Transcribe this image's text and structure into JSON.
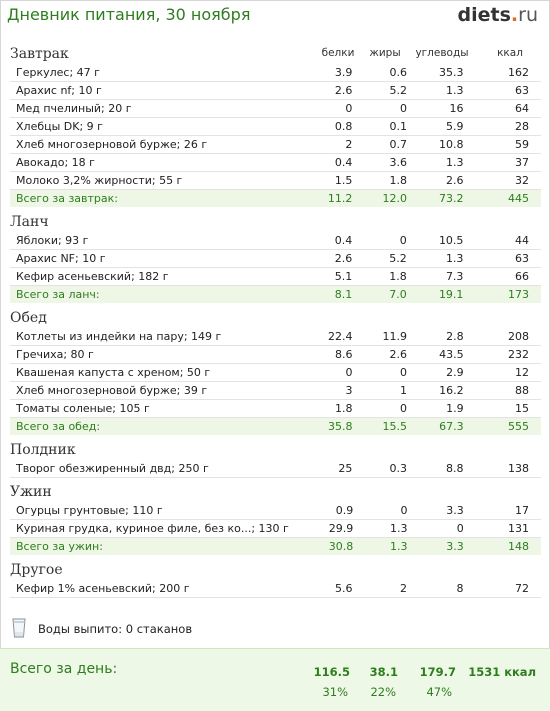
{
  "header": {
    "title": "Дневник питания, 30 ноября",
    "logo_main": "diets",
    "logo_dot": ".",
    "logo_tld": "ru"
  },
  "columns": {
    "protein": "белки",
    "fat": "жиры",
    "carbs": "углеводы",
    "kcal": "ккал"
  },
  "meals": [
    {
      "title": "Завтрак",
      "rows": [
        {
          "name": "Геркулес; 47 г",
          "p": "3.9",
          "f": "0.6",
          "c": "35.3",
          "k": "162"
        },
        {
          "name": "Арахис nf; 10 г",
          "p": "2.6",
          "f": "5.2",
          "c": "1.3",
          "k": "63"
        },
        {
          "name": "Мед пчелиный; 20 г",
          "p": "0",
          "f": "0",
          "c": "16",
          "k": "64"
        },
        {
          "name": "Хлебцы DK; 9 г",
          "p": "0.8",
          "f": "0.1",
          "c": "5.9",
          "k": "28"
        },
        {
          "name": "Хлеб многозерновой бурже; 26 г",
          "p": "2",
          "f": "0.7",
          "c": "10.8",
          "k": "59"
        },
        {
          "name": "Авокадо; 18 г",
          "p": "0.4",
          "f": "3.6",
          "c": "1.3",
          "k": "37"
        },
        {
          "name": "Молоко 3,2% жирности; 55 г",
          "p": "1.5",
          "f": "1.8",
          "c": "2.6",
          "k": "32"
        }
      ],
      "total": {
        "name": "Всего за завтрак:",
        "p": "11.2",
        "f": "12.0",
        "c": "73.2",
        "k": "445"
      }
    },
    {
      "title": "Ланч",
      "rows": [
        {
          "name": "Яблоки; 93 г",
          "p": "0.4",
          "f": "0",
          "c": "10.5",
          "k": "44"
        },
        {
          "name": "Арахис NF; 10 г",
          "p": "2.6",
          "f": "5.2",
          "c": "1.3",
          "k": "63"
        },
        {
          "name": "Кефир асеньевский; 182 г",
          "p": "5.1",
          "f": "1.8",
          "c": "7.3",
          "k": "66"
        }
      ],
      "total": {
        "name": "Всего за ланч:",
        "p": "8.1",
        "f": "7.0",
        "c": "19.1",
        "k": "173"
      }
    },
    {
      "title": "Обед",
      "rows": [
        {
          "name": "Котлеты из индейки на пару; 149 г",
          "p": "22.4",
          "f": "11.9",
          "c": "2.8",
          "k": "208"
        },
        {
          "name": "Гречиха; 80 г",
          "p": "8.6",
          "f": "2.6",
          "c": "43.5",
          "k": "232"
        },
        {
          "name": "Квашеная капуста с хреном; 50 г",
          "p": "0",
          "f": "0",
          "c": "2.9",
          "k": "12"
        },
        {
          "name": "Хлеб многозерновой бурже; 39 г",
          "p": "3",
          "f": "1",
          "c": "16.2",
          "k": "88"
        },
        {
          "name": "Томаты соленые; 105 г",
          "p": "1.8",
          "f": "0",
          "c": "1.9",
          "k": "15"
        }
      ],
      "total": {
        "name": "Всего за обед:",
        "p": "35.8",
        "f": "15.5",
        "c": "67.3",
        "k": "555"
      }
    },
    {
      "title": "Полдник",
      "rows": [
        {
          "name": "Творог обезжиренный двд; 250 г",
          "p": "25",
          "f": "0.3",
          "c": "8.8",
          "k": "138"
        }
      ],
      "total": null
    },
    {
      "title": "Ужин",
      "rows": [
        {
          "name": "Огурцы грунтовые; 110 г",
          "p": "0.9",
          "f": "0",
          "c": "3.3",
          "k": "17"
        },
        {
          "name": "Куриная грудка, куриное филе, без ко...; 130 г",
          "p": "29.9",
          "f": "1.3",
          "c": "0",
          "k": "131"
        }
      ],
      "total": {
        "name": "Всего за ужин:",
        "p": "30.8",
        "f": "1.3",
        "c": "3.3",
        "k": "148"
      }
    },
    {
      "title": "Другое",
      "rows": [
        {
          "name": "Кефир 1% асеньевский; 200 г",
          "p": "5.6",
          "f": "2",
          "c": "8",
          "k": "72"
        }
      ],
      "total": null
    }
  ],
  "water": {
    "text": "Воды выпито: 0 стаканов",
    "icon": "glass-icon"
  },
  "day_total": {
    "label": "Всего за день:",
    "p": "116.5",
    "f": "38.1",
    "c": "179.7",
    "k": "1531 ккал",
    "p_pct": "31%",
    "f_pct": "22%",
    "c_pct": "47%"
  },
  "colors": {
    "accent_green": "#2e7d1e",
    "total_bg": "#eef6e6",
    "logo_dot": "#e06a1b"
  }
}
